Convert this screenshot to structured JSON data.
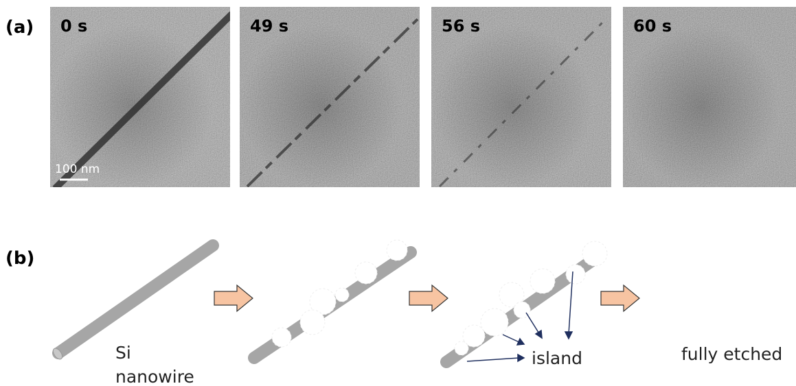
{
  "panel_a": {
    "label": "(a)",
    "frames": [
      {
        "time": "0 s"
      },
      {
        "time": "49 s"
      },
      {
        "time": "56 s"
      },
      {
        "time": "60 s"
      }
    ],
    "scale_bar": "100 nm"
  },
  "panel_b": {
    "label": "(b)",
    "nanowire_label": [
      "Si",
      "nanowire"
    ],
    "island_label": "island",
    "etched_label": "fully etched"
  }
}
